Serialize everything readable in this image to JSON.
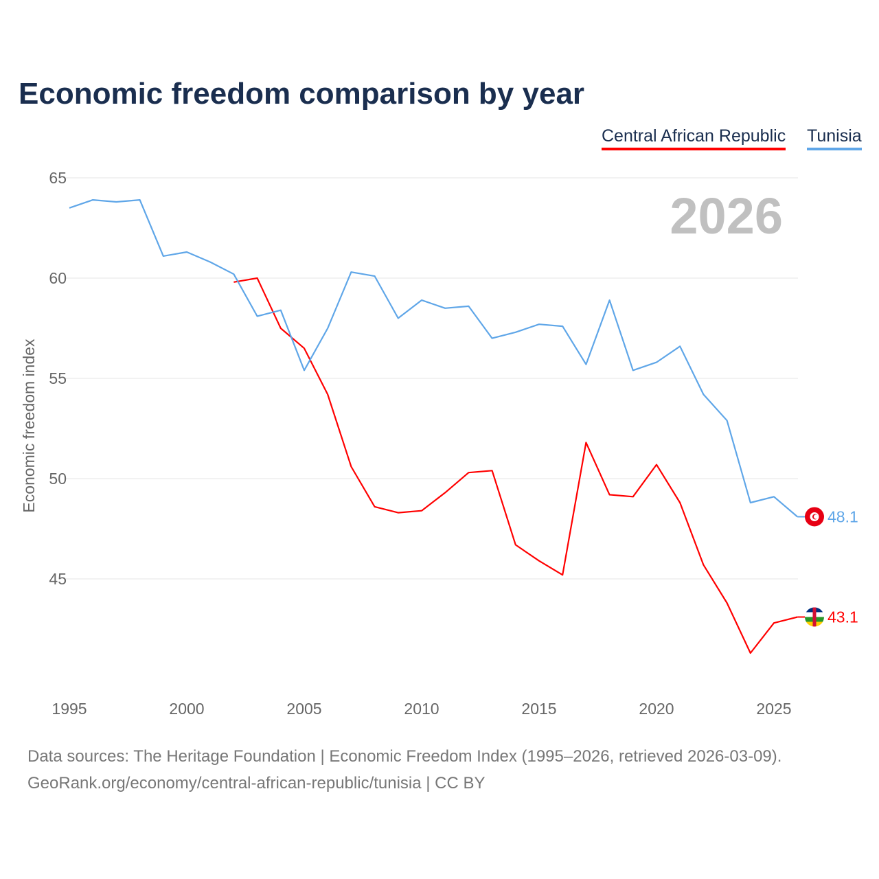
{
  "title": "Economic freedom comparison by year",
  "footer": {
    "line1": "Data sources: The Heritage Foundation | Economic Freedom Index (1995–2026, retrieved 2026-03-09).",
    "line2": "GeoRank.org/economy/central-african-republic/tunisia | CC BY"
  },
  "chart_data": {
    "type": "line",
    "title": "Economic freedom comparison by year",
    "xlabel": "",
    "ylabel": "Economic freedom index",
    "year_watermark": "2026",
    "xlim": [
      1995,
      2026
    ],
    "ylim": [
      39.6,
      65.6
    ],
    "xticks": [
      1995,
      2000,
      2005,
      2010,
      2015,
      2020,
      2025
    ],
    "yticks": [
      45,
      50,
      55,
      60,
      65
    ],
    "grid": true,
    "legend_position": "top-right",
    "series": [
      {
        "name": "Central African Republic",
        "color": "#ff0000",
        "end_label": "43.1",
        "flag": "central-african-republic-flag",
        "x": [
          2002,
          2003,
          2004,
          2005,
          2006,
          2007,
          2008,
          2009,
          2010,
          2011,
          2012,
          2013,
          2014,
          2015,
          2016,
          2017,
          2018,
          2019,
          2020,
          2021,
          2022,
          2023,
          2024,
          2025,
          2026
        ],
        "values": [
          59.8,
          60.0,
          57.5,
          56.5,
          54.2,
          50.6,
          48.6,
          48.3,
          48.4,
          49.3,
          50.3,
          50.4,
          46.7,
          45.9,
          45.2,
          51.8,
          49.2,
          49.1,
          50.7,
          48.8,
          45.7,
          43.8,
          41.3,
          42.8,
          43.1
        ]
      },
      {
        "name": "Tunisia",
        "color": "#5fa6e8",
        "end_label": "48.1",
        "flag": "tunisia-flag",
        "x": [
          1995,
          1996,
          1997,
          1998,
          1999,
          2000,
          2001,
          2002,
          2003,
          2004,
          2005,
          2006,
          2007,
          2008,
          2009,
          2010,
          2011,
          2012,
          2013,
          2014,
          2015,
          2016,
          2017,
          2018,
          2019,
          2020,
          2021,
          2022,
          2023,
          2024,
          2025,
          2026
        ],
        "values": [
          63.5,
          63.9,
          63.8,
          63.9,
          61.1,
          61.3,
          60.8,
          60.2,
          58.1,
          58.4,
          55.4,
          57.5,
          60.3,
          60.1,
          58.0,
          58.9,
          58.5,
          58.6,
          57.0,
          57.3,
          57.7,
          57.6,
          55.7,
          58.9,
          55.4,
          55.8,
          56.6,
          54.2,
          52.9,
          48.8,
          49.1,
          48.1
        ]
      }
    ]
  }
}
